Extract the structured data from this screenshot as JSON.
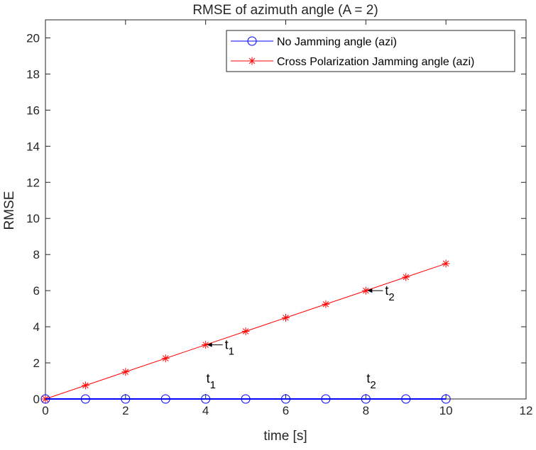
{
  "chart_data": {
    "type": "line",
    "title": "RMSE of azimuth angle (A = 2)",
    "xlabel": "time [s]",
    "ylabel": "RMSE",
    "xlim": [
      0,
      12
    ],
    "ylim": [
      0,
      21
    ],
    "xticks": [
      0,
      2,
      4,
      6,
      8,
      10,
      12
    ],
    "yticks": [
      0,
      2,
      4,
      6,
      8,
      10,
      12,
      14,
      16,
      18,
      20
    ],
    "grid": false,
    "legend_position": "top-right",
    "series": [
      {
        "name": "No Jamming angle (azi)",
        "color": "#0000ff",
        "marker": "circle",
        "x": [
          0,
          1,
          2,
          3,
          4,
          5,
          6,
          7,
          8,
          9,
          10
        ],
        "y": [
          0,
          0,
          0,
          0,
          0,
          0,
          0,
          0,
          0,
          0,
          0
        ]
      },
      {
        "name": "Cross Polarization Jamming angle (azi)",
        "color": "#ff0000",
        "marker": "asterisk",
        "x": [
          0,
          1,
          2,
          3,
          4,
          5,
          6,
          7,
          8,
          9,
          10
        ],
        "y": [
          0,
          0.75,
          1.5,
          2.25,
          3.0,
          3.75,
          4.5,
          5.25,
          6.0,
          6.75,
          7.5
        ]
      }
    ],
    "annotations": [
      {
        "base": "t",
        "sub": "1",
        "x": 4,
        "y": 0,
        "arrow": false
      },
      {
        "base": "t",
        "sub": "2",
        "x": 8,
        "y": 0,
        "arrow": false
      },
      {
        "base": "t",
        "sub": "1",
        "x": 4,
        "y": 3.0,
        "arrow": true
      },
      {
        "base": "t",
        "sub": "2",
        "x": 8,
        "y": 6.0,
        "arrow": true
      }
    ]
  }
}
